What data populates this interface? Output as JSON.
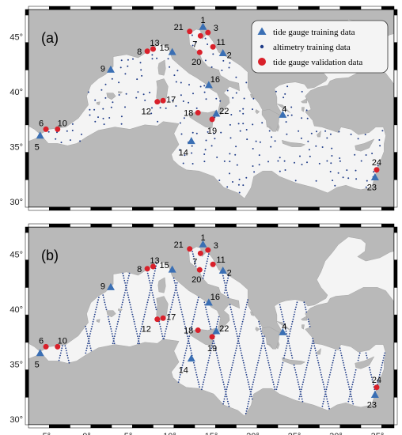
{
  "figure": {
    "panels": [
      {
        "id": "a",
        "label": "(a)",
        "altimetry_mode": "scattered"
      },
      {
        "id": "b",
        "label": "(b)",
        "altimetry_mode": "tracks"
      }
    ],
    "legend": {
      "entries": [
        {
          "symbol": "triangle",
          "color": "#3a6fb4",
          "text": "tide gauge training data"
        },
        {
          "symbol": "dot",
          "color": "#1f3c88",
          "text": "altimetry training data"
        },
        {
          "symbol": "circle",
          "color": "#d9202a",
          "text": "tide gauge validation data"
        }
      ]
    },
    "x_ticks": [
      "-5°",
      "0°",
      "5°",
      "10°",
      "15°",
      "20°",
      "25°",
      "30°",
      "35°"
    ],
    "x_tick_values": [
      -5,
      0,
      5,
      10,
      15,
      20,
      25,
      30,
      35
    ],
    "y_ticks": [
      "30°",
      "35°",
      "40°",
      "45°"
    ],
    "y_tick_values": [
      30,
      35,
      40,
      45
    ],
    "extent": {
      "lon": [
        -7,
        37
      ],
      "lat": [
        29.5,
        47.5
      ]
    },
    "colors": {
      "land": "#b9b9b9",
      "sea": "#f4f4f4",
      "training": "#3a6fb4",
      "validation": "#d9202a",
      "altimetry": "#1f3c88"
    }
  },
  "stations": [
    {
      "id": "1",
      "type": "training",
      "lon": 14.0,
      "lat": 45.9
    },
    {
      "id": "2",
      "type": "training",
      "lon": 16.4,
      "lat": 43.5
    },
    {
      "id": "3",
      "type": "validation",
      "lon": 14.6,
      "lat": 45.4
    },
    {
      "id": "4",
      "type": "training",
      "lon": 23.6,
      "lat": 37.9
    },
    {
      "id": "5",
      "type": "training",
      "lon": -5.6,
      "lat": 36.0
    },
    {
      "id": "6",
      "type": "validation",
      "lon": -4.9,
      "lat": 36.6
    },
    {
      "id": "7",
      "type": "validation",
      "lon": 13.7,
      "lat": 45.1
    },
    {
      "id": "8",
      "type": "validation",
      "lon": 7.3,
      "lat": 43.7
    },
    {
      "id": "9",
      "type": "training",
      "lon": 2.9,
      "lat": 42.0
    },
    {
      "id": "10",
      "type": "validation",
      "lon": -3.5,
      "lat": 36.6
    },
    {
      "id": "11",
      "type": "validation",
      "lon": 15.2,
      "lat": 44.1
    },
    {
      "id": "12",
      "type": "validation",
      "lon": 8.5,
      "lat": 39.1
    },
    {
      "id": "13",
      "type": "validation",
      "lon": 8.0,
      "lat": 43.9
    },
    {
      "id": "14",
      "type": "training",
      "lon": 12.6,
      "lat": 35.5
    },
    {
      "id": "15",
      "type": "training",
      "lon": 10.3,
      "lat": 43.6
    },
    {
      "id": "16",
      "type": "training",
      "lon": 14.7,
      "lat": 40.6
    },
    {
      "id": "17",
      "type": "validation",
      "lon": 9.2,
      "lat": 39.2
    },
    {
      "id": "18",
      "type": "validation",
      "lon": 13.4,
      "lat": 38.1
    },
    {
      "id": "19",
      "type": "validation",
      "lon": 15.1,
      "lat": 37.5
    },
    {
      "id": "20",
      "type": "validation",
      "lon": 13.6,
      "lat": 43.6
    },
    {
      "id": "21",
      "type": "validation",
      "lon": 12.4,
      "lat": 45.5
    },
    {
      "id": "22",
      "type": "training",
      "lon": 15.6,
      "lat": 38.0
    },
    {
      "id": "23",
      "type": "training",
      "lon": 34.7,
      "lat": 32.2
    },
    {
      "id": "24",
      "type": "validation",
      "lon": 34.9,
      "lat": 32.9
    }
  ]
}
